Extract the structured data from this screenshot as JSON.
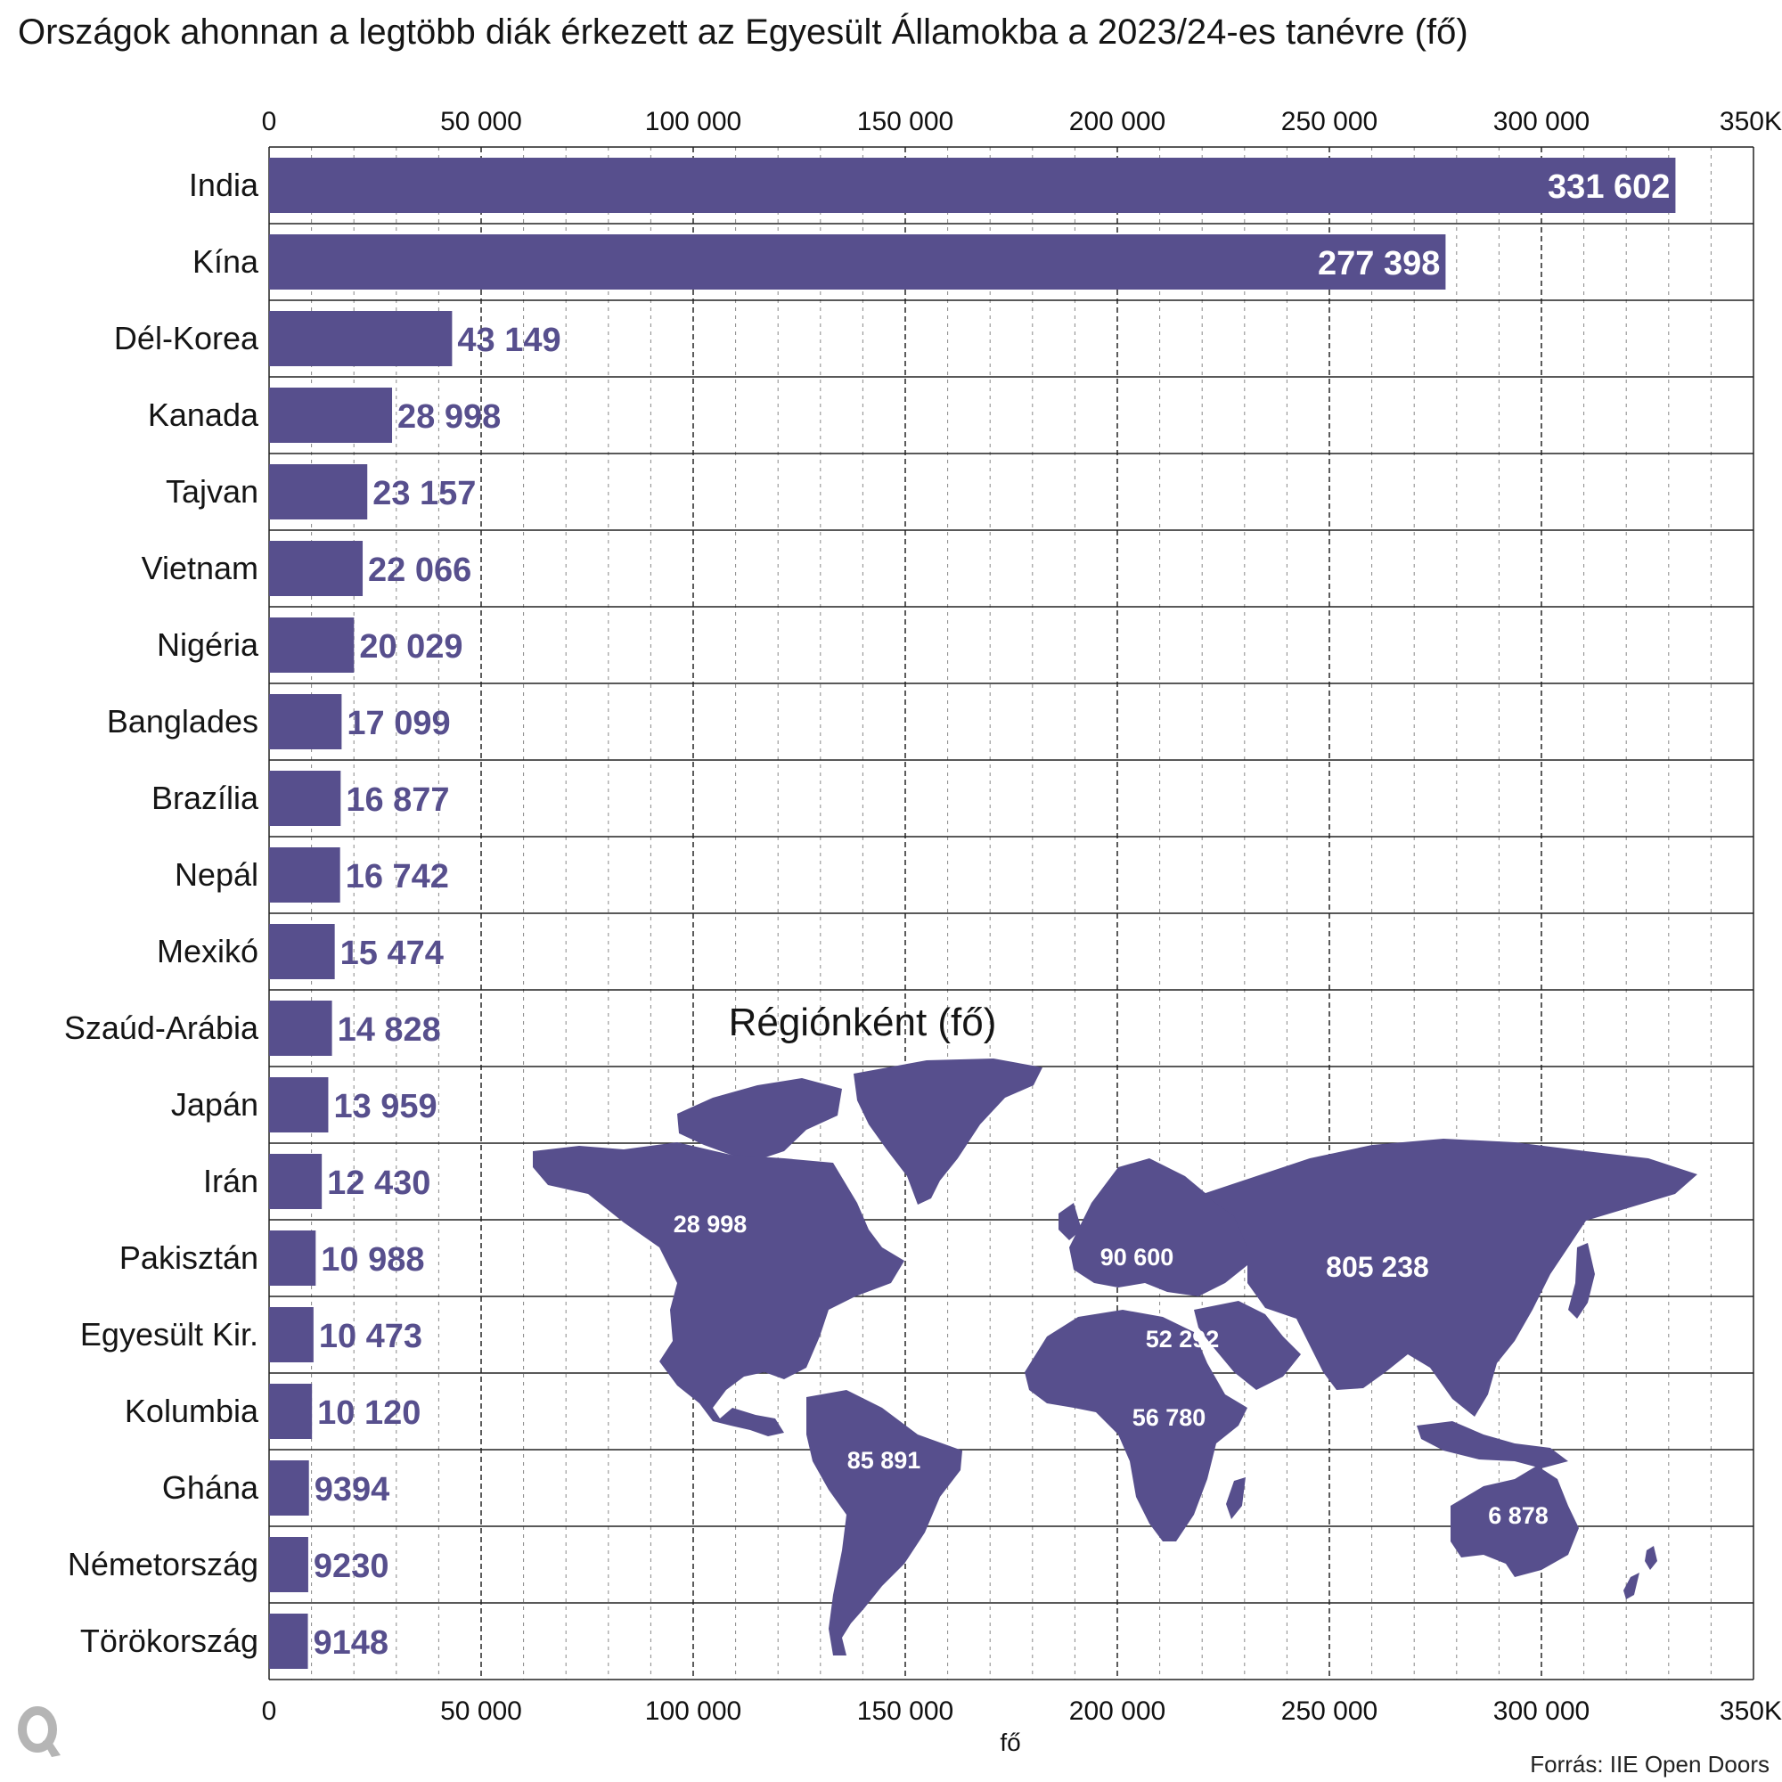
{
  "chart_data": {
    "type": "bar",
    "orientation": "horizontal",
    "title": "Országok ahonnan a legtöbb diák érkezett az Egyesült Államokba a 2023/24-es tanévre (fő)",
    "xlabel": "fő",
    "xlim": [
      0,
      350000
    ],
    "x_ticks": [
      {
        "value": 0,
        "label": "0"
      },
      {
        "value": 50000,
        "label": "50 000"
      },
      {
        "value": 100000,
        "label": "100 000"
      },
      {
        "value": 150000,
        "label": "150 000"
      },
      {
        "value": 200000,
        "label": "200 000"
      },
      {
        "value": 250000,
        "label": "250 000"
      },
      {
        "value": 300000,
        "label": "300 000"
      },
      {
        "value": 350000,
        "label": "350K"
      }
    ],
    "grid": true,
    "bar_color": "#574f8d",
    "categories": [
      "India",
      "Kína",
      "Dél-Korea",
      "Kanada",
      "Tajvan",
      "Vietnam",
      "Nigéria",
      "Banglades",
      "Brazília",
      "Nepál",
      "Mexikó",
      "Szaúd-Arábia",
      "Japán",
      "Irán",
      "Pakisztán",
      "Egyesült Kir.",
      "Kolumbia",
      "Ghána",
      "Németország",
      "Törökország"
    ],
    "values": [
      331602,
      277398,
      43149,
      28998,
      23157,
      22066,
      20029,
      17099,
      16877,
      16742,
      15474,
      14828,
      13959,
      12430,
      10988,
      10473,
      10120,
      9394,
      9230,
      9148
    ],
    "value_labels": [
      "331 602",
      "277 398",
      "43 149",
      "28 998",
      "23 157",
      "22 066",
      "20 029",
      "17 099",
      "16 877",
      "16 742",
      "15 474",
      "14 828",
      "13 959",
      "12 430",
      "10 988",
      "10 473",
      "10 120",
      "9394",
      "9230",
      "9148"
    ],
    "inset": {
      "title": "Régiónként (fő)",
      "type": "map",
      "regions": [
        {
          "region": "North America",
          "label": "28 998",
          "value": 28998
        },
        {
          "region": "Europe",
          "label": "90 600",
          "value": 90600
        },
        {
          "region": "Asia",
          "label": "805 238",
          "value": 805238
        },
        {
          "region": "Middle East",
          "label": "52 292",
          "value": 52292
        },
        {
          "region": "Africa",
          "label": "56 780",
          "value": 56780
        },
        {
          "region": "Latin America",
          "label": "85 891",
          "value": 85891
        },
        {
          "region": "Oceania",
          "label": "6 878",
          "value": 6878
        }
      ]
    }
  },
  "source": "Forrás: IIE Open Doors",
  "logo_text": "Q"
}
